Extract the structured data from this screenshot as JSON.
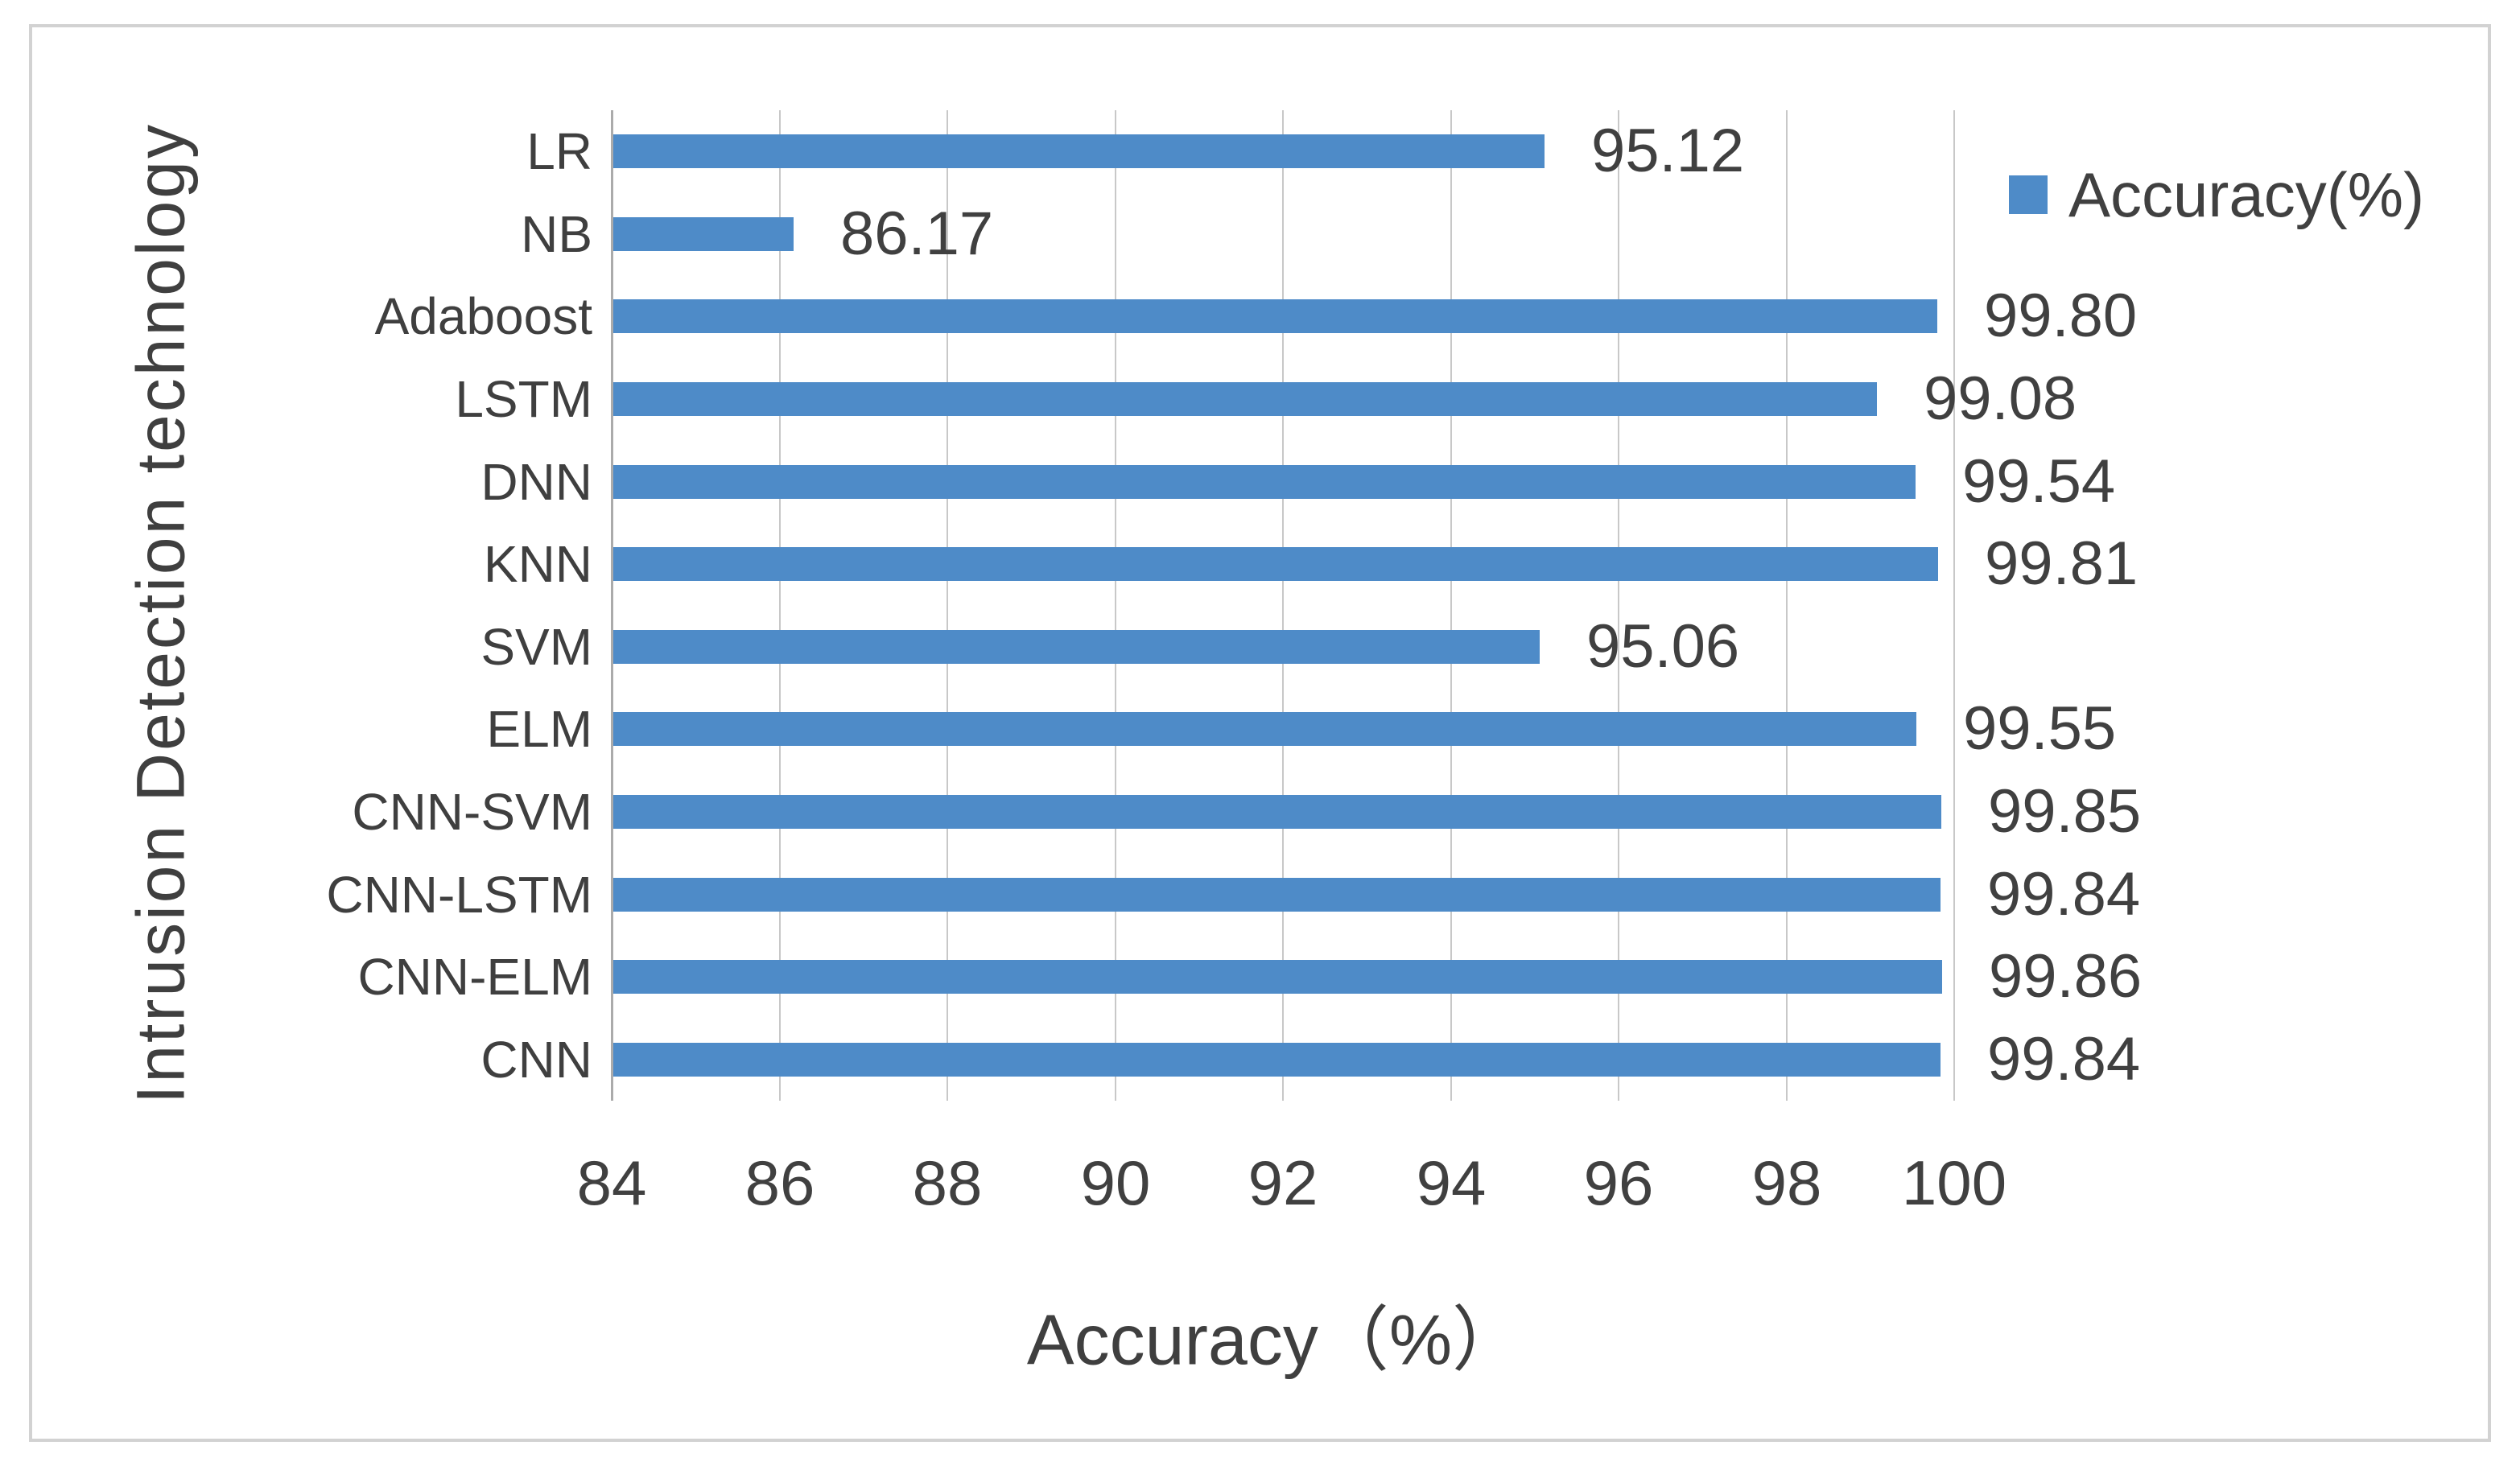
{
  "chart_data": {
    "type": "bar",
    "orientation": "horizontal",
    "title": "",
    "categories": [
      "LR",
      "NB",
      "Adaboost",
      "LSTM",
      "DNN",
      "KNN",
      "SVM",
      "ELM",
      "CNN-SVM",
      "CNN-LSTM",
      "CNN-ELM",
      "CNN"
    ],
    "values": [
      95.12,
      86.17,
      99.8,
      99.08,
      99.54,
      99.81,
      95.06,
      99.55,
      99.85,
      99.84,
      99.86,
      99.84
    ],
    "value_labels": [
      "95.12",
      "86.17",
      "99.80",
      "99.08",
      "99.54",
      "99.81",
      "95.06",
      "99.55",
      "99.85",
      "99.84",
      "99.86",
      "99.84"
    ],
    "series_name": "Accuracy(%)",
    "xlabel": "Accuracy（%）",
    "ylabel": "Intrusion Detection technology",
    "xlim": [
      84,
      100
    ],
    "xticks": [
      84,
      86,
      88,
      90,
      92,
      94,
      96,
      98,
      100
    ],
    "grid": "vertical-only",
    "legend_position": "top-right",
    "colors": {
      "bar": "#4e8bc8",
      "gridline": "#c8c8c8",
      "axis_line": "#ababab",
      "text": "#404040",
      "frame_border": "#d2d2d2"
    }
  }
}
